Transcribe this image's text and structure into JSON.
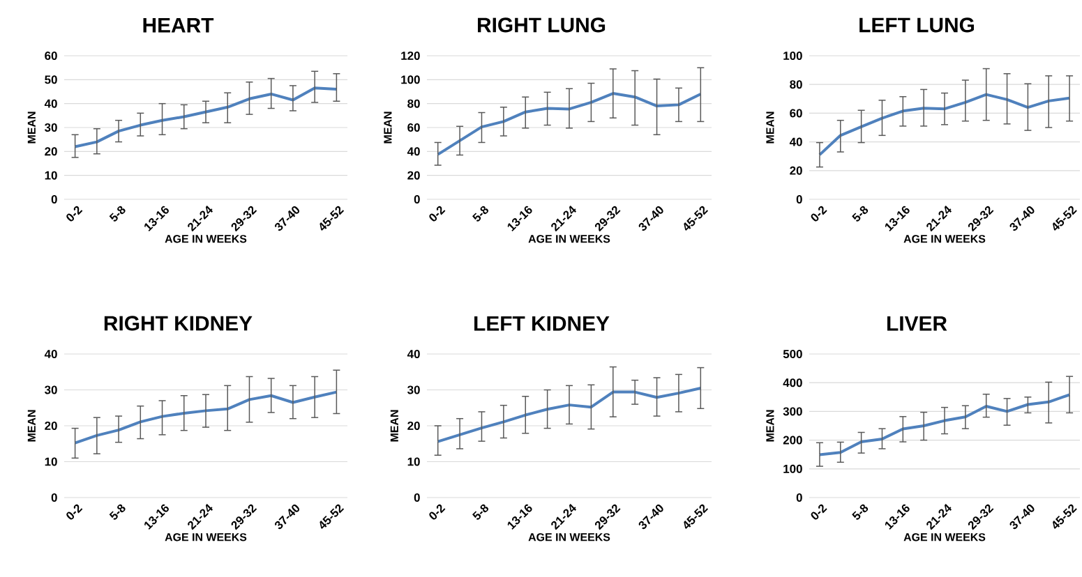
{
  "chart_data": [
    {
      "type": "line",
      "title": "HEART",
      "xlabel": "AGE IN WEEKS",
      "ylabel": "MEAN",
      "categories": [
        "0-2",
        null,
        "5-8",
        null,
        "13-16",
        null,
        "21-24",
        null,
        "29-32",
        null,
        "37-40",
        null,
        "45-52"
      ],
      "color": "#4f81bd",
      "grid": "y",
      "ylim": [
        0,
        60
      ],
      "yticks": [
        0,
        10,
        20,
        30,
        40,
        50,
        60
      ],
      "values": [
        22,
        24,
        28.5,
        31,
        33,
        34.5,
        36.5,
        38.5,
        42,
        44,
        41.5,
        46.5,
        46
      ],
      "errors": [
        [
          17.5,
          27
        ],
        [
          19,
          29.5
        ],
        [
          24,
          33
        ],
        [
          26.5,
          36
        ],
        [
          27,
          40
        ],
        [
          29.5,
          39.5
        ],
        [
          32,
          41
        ],
        [
          32,
          44.5
        ],
        [
          35.5,
          49
        ],
        [
          38,
          50.5
        ],
        [
          37,
          47.5
        ],
        [
          40.5,
          53.5
        ],
        [
          41,
          52.5
        ]
      ]
    },
    {
      "type": "line",
      "title": "RIGHT LUNG",
      "xlabel": "AGE IN WEEKS",
      "ylabel": "MEAN",
      "categories": [
        "0-2",
        null,
        "5-8",
        null,
        "13-16",
        null,
        "21-24",
        null,
        "29-32",
        null,
        "37-40",
        null,
        "45-52"
      ],
      "color": "#4f81bd",
      "grid": "y",
      "ylim": [
        0,
        120
      ],
      "yticks": [
        0,
        20,
        40,
        60,
        80,
        100,
        120
      ],
      "values": [
        37.5,
        49,
        60.5,
        65,
        73,
        76,
        75.5,
        81,
        88.5,
        85.5,
        78,
        79,
        88
      ],
      "errors": [
        [
          28.5,
          47.5
        ],
        [
          37,
          61
        ],
        [
          47.5,
          72.5
        ],
        [
          53,
          77
        ],
        [
          59.5,
          85.5
        ],
        [
          62,
          89.5
        ],
        [
          59.5,
          92.5
        ],
        [
          65,
          97
        ],
        [
          68,
          109
        ],
        [
          62,
          107.5
        ],
        [
          54,
          100.5
        ],
        [
          65,
          93
        ],
        [
          65,
          110
        ]
      ]
    },
    {
      "type": "line",
      "title": "LEFT LUNG",
      "xlabel": "AGE IN WEEKS",
      "ylabel": "MEAN",
      "categories": [
        "0-2",
        null,
        "5-8",
        null,
        "13-16",
        null,
        "21-24",
        null,
        "29-32",
        null,
        "37-40",
        null,
        "45-52"
      ],
      "color": "#4f81bd",
      "grid": "y",
      "ylim": [
        0,
        100
      ],
      "yticks": [
        0,
        20,
        40,
        60,
        80,
        100
      ],
      "values": [
        31,
        44.5,
        50.5,
        56.5,
        61.5,
        63.5,
        63,
        67.5,
        73,
        69.5,
        64,
        68.5,
        70.5
      ],
      "errors": [
        [
          22.5,
          39.5
        ],
        [
          33,
          55
        ],
        [
          39.5,
          62
        ],
        [
          44.5,
          69
        ],
        [
          51,
          71.5
        ],
        [
          51,
          76.5
        ],
        [
          52,
          74
        ],
        [
          54.5,
          83
        ],
        [
          55,
          91
        ],
        [
          52.5,
          87.5
        ],
        [
          48,
          80.5
        ],
        [
          50,
          86
        ],
        [
          54.5,
          86
        ]
      ]
    },
    {
      "type": "line",
      "title": "RIGHT KIDNEY",
      "xlabel": "AGE IN WEEKS",
      "ylabel": "MEAN",
      "categories": [
        "0-2",
        null,
        "5-8",
        null,
        "13-16",
        null,
        "21-24",
        null,
        "29-32",
        null,
        "37-40",
        null,
        "45-52"
      ],
      "color": "#4f81bd",
      "grid": "y",
      "ylim": [
        0,
        40
      ],
      "yticks": [
        0,
        10,
        20,
        30,
        40
      ],
      "values": [
        15.2,
        17.3,
        18.8,
        21.1,
        22.6,
        23.5,
        24.2,
        24.7,
        27.3,
        28.4,
        26.5,
        28,
        29.4
      ],
      "errors": [
        [
          11,
          19.3
        ],
        [
          12.2,
          22.3
        ],
        [
          15.4,
          22.7
        ],
        [
          16.4,
          25.5
        ],
        [
          17.5,
          27
        ],
        [
          18.7,
          28.4
        ],
        [
          19.6,
          28.7
        ],
        [
          18.7,
          31.2
        ],
        [
          21,
          33.7
        ],
        [
          23.7,
          33.2
        ],
        [
          22,
          31.2
        ],
        [
          22.3,
          33.7
        ],
        [
          23.4,
          35.5
        ]
      ]
    },
    {
      "type": "line",
      "title": "LEFT KIDNEY",
      "xlabel": "AGE IN WEEKS",
      "ylabel": "MEAN",
      "categories": [
        "0-2",
        null,
        "5-8",
        null,
        "13-16",
        null,
        "21-24",
        null,
        "29-32",
        null,
        "37-40",
        null,
        "45-52"
      ],
      "color": "#4f81bd",
      "grid": "y",
      "ylim": [
        0,
        40
      ],
      "yticks": [
        0,
        10,
        20,
        30,
        40
      ],
      "values": [
        15.6,
        17.5,
        19.4,
        21.1,
        23,
        24.6,
        25.8,
        25.2,
        29.4,
        29.4,
        27.9,
        29.1,
        30.5
      ],
      "errors": [
        [
          11.8,
          20
        ],
        [
          13.6,
          22
        ],
        [
          15.7,
          23.9
        ],
        [
          16.6,
          25.7
        ],
        [
          17.9,
          28.2
        ],
        [
          19.3,
          30
        ],
        [
          20.5,
          31.2
        ],
        [
          19.1,
          31.4
        ],
        [
          22.5,
          36.4
        ],
        [
          26,
          32.7
        ],
        [
          22.7,
          33.4
        ],
        [
          23.9,
          34.3
        ],
        [
          24.8,
          36.2
        ]
      ]
    },
    {
      "type": "line",
      "title": "LIVER",
      "xlabel": "AGE IN WEEKS",
      "ylabel": "MEAN",
      "categories": [
        "0-2",
        null,
        "5-8",
        null,
        "13-16",
        null,
        "21-24",
        null,
        "29-32",
        null,
        "37-40",
        null,
        "45-52"
      ],
      "color": "#4f81bd",
      "grid": "y",
      "ylim": [
        0,
        500
      ],
      "yticks": [
        0,
        100,
        200,
        300,
        400,
        500
      ],
      "values": [
        149,
        157,
        194,
        204,
        239,
        250,
        268,
        281,
        318,
        300,
        324,
        333,
        358
      ],
      "errors": [
        [
          109,
          191
        ],
        [
          123,
          193
        ],
        [
          155,
          227
        ],
        [
          170,
          240
        ],
        [
          194,
          282
        ],
        [
          200,
          297
        ],
        [
          222,
          314
        ],
        [
          240,
          320
        ],
        [
          280,
          360
        ],
        [
          252,
          345
        ],
        [
          295,
          350
        ],
        [
          260,
          402
        ],
        [
          295,
          422
        ]
      ]
    }
  ]
}
